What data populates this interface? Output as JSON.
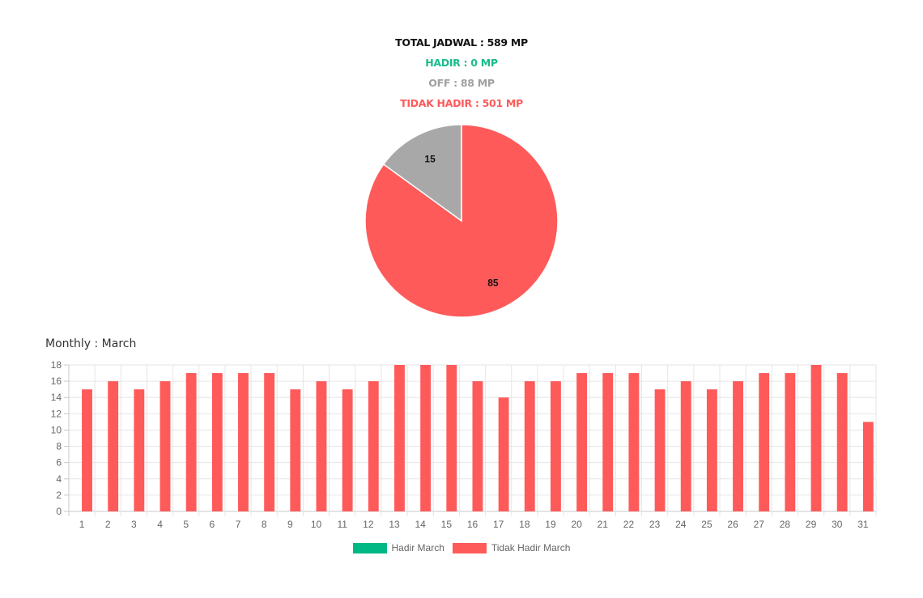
{
  "summary": {
    "total": "TOTAL JADWAL : 589 MP",
    "hadir": "HADIR : 0 MP",
    "off": "OFF : 88 MP",
    "tidak_hadir": "TIDAK HADIR : 501 MP"
  },
  "colors": {
    "total": "#111111",
    "hadir": "#1abc8c",
    "off": "#a0a0a0",
    "tidak_hadir": "#ff5a5a",
    "hadir_series": "#00b883",
    "tidak_hadir_series": "#ff5a5a",
    "off_slice": "#a8a8a8",
    "grid": "#e6e6e6",
    "axis": "#c8c8c8",
    "tick_text": "#666666"
  },
  "monthly": {
    "title": "Monthly : March"
  },
  "chart_data": [
    {
      "type": "pie",
      "slices": [
        {
          "label": "15",
          "value": 15,
          "color": "#a8a8a8"
        },
        {
          "label": "85",
          "value": 85,
          "color": "#ff5a5a"
        }
      ]
    },
    {
      "type": "bar",
      "title": "Monthly : March",
      "categories": [
        "1",
        "2",
        "3",
        "4",
        "5",
        "6",
        "7",
        "8",
        "9",
        "10",
        "11",
        "12",
        "13",
        "14",
        "15",
        "16",
        "17",
        "18",
        "19",
        "20",
        "21",
        "22",
        "23",
        "24",
        "25",
        "26",
        "27",
        "28",
        "29",
        "30",
        "31"
      ],
      "series": [
        {
          "name": "Hadir March",
          "color": "#00b883",
          "values": [
            0,
            0,
            0,
            0,
            0,
            0,
            0,
            0,
            0,
            0,
            0,
            0,
            0,
            0,
            0,
            0,
            0,
            0,
            0,
            0,
            0,
            0,
            0,
            0,
            0,
            0,
            0,
            0,
            0,
            0,
            0
          ]
        },
        {
          "name": "Tidak Hadir March",
          "color": "#ff5a5a",
          "values": [
            15,
            16,
            15,
            16,
            17,
            17,
            17,
            17,
            15,
            16,
            15,
            16,
            18,
            18,
            18,
            16,
            14,
            16,
            16,
            17,
            17,
            17,
            15,
            16,
            15,
            16,
            17,
            17,
            18,
            17,
            11
          ]
        }
      ],
      "ylim": [
        0,
        18
      ],
      "yticks": [
        0,
        2,
        4,
        6,
        8,
        10,
        12,
        14,
        16,
        18
      ],
      "grid": true,
      "legend": "bottom-center"
    }
  ]
}
